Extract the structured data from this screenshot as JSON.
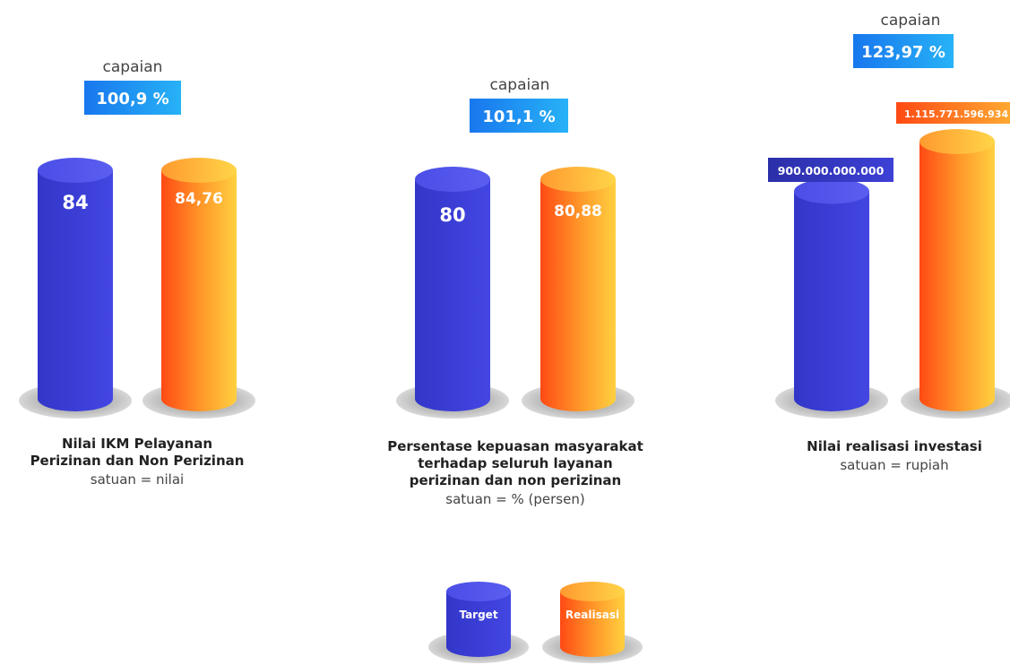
{
  "chart_data": [
    {
      "type": "bar",
      "title": "Nilai IKM Pelayanan Perizinan dan Non Perizinan",
      "title_lines": [
        "Nilai IKM Pelayanan",
        "Perizinan dan Non Perizinan"
      ],
      "unit_label": "satuan = nilai",
      "capaian_label": "capaian",
      "capaian_value": "100,9 %",
      "series": [
        {
          "name": "Target",
          "values": [
            84
          ],
          "label": "84"
        },
        {
          "name": "Realisasi",
          "values": [
            84.76
          ],
          "label": "84,76"
        }
      ]
    },
    {
      "type": "bar",
      "title": "Persentase kepuasan masyarakat terhadap seluruh layanan perizinan dan non perizinan",
      "title_lines": [
        "Persentase kepuasan masyarakat",
        "terhadap seluruh layanan",
        "perizinan dan non perizinan"
      ],
      "unit_label": "satuan = % (persen)",
      "capaian_label": "capaian",
      "capaian_value": "101,1 %",
      "series": [
        {
          "name": "Target",
          "values": [
            80
          ],
          "label": "80"
        },
        {
          "name": "Realisasi",
          "values": [
            80.88
          ],
          "label": "80,88"
        }
      ]
    },
    {
      "type": "bar",
      "title": "Nilai realisasi investasi",
      "title_lines": [
        "Nilai realisasi investasi"
      ],
      "unit_label": "satuan = rupiah",
      "capaian_label": "capaian",
      "capaian_value": "123,97 %",
      "series": [
        {
          "name": "Target",
          "values": [
            900000000000
          ],
          "label": "900.000.000.000"
        },
        {
          "name": "Realisasi",
          "values": [
            1115771596934
          ],
          "label": "1.115.771.596.934"
        }
      ]
    }
  ],
  "legend": {
    "target_label": "Target",
    "realisasi_label": "Realisasi"
  },
  "colors": {
    "target": "#3B3FD8",
    "target_top": "#4A4FE6",
    "realisasi": "#FF6A1A",
    "realisasi_top": "#FFD34A",
    "capaian_badge": "#1E7BF0",
    "shadow": "#C9C9C9"
  }
}
